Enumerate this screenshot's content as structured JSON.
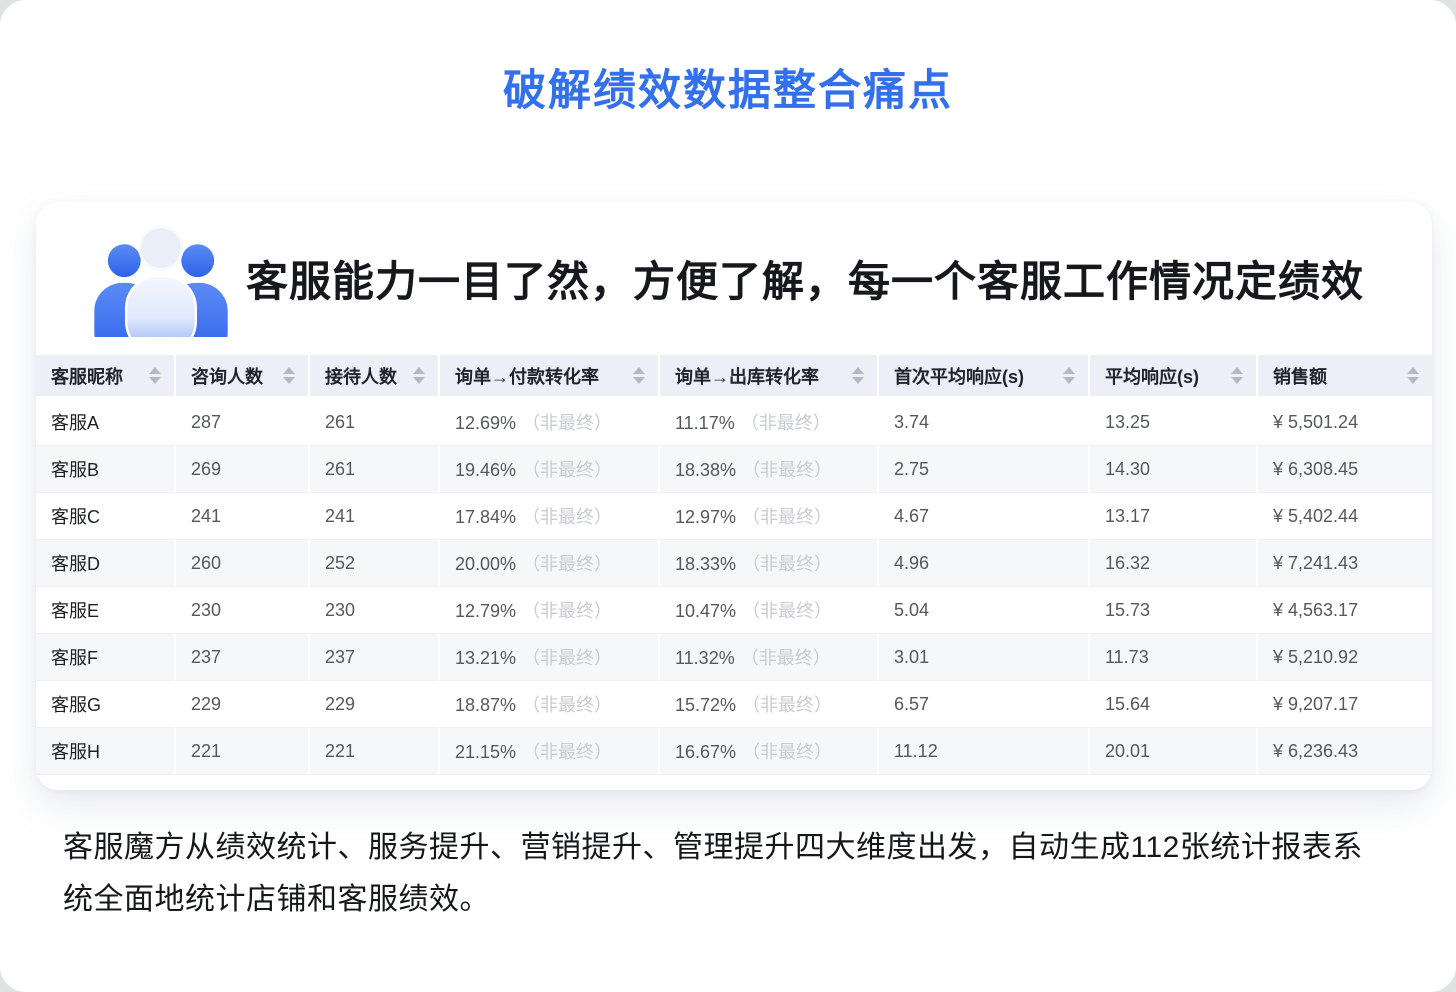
{
  "page": {
    "title": "破解绩效数据整合痛点"
  },
  "colors": {
    "accent_blue": "#3370eb",
    "header_bg": "#edeff6",
    "row_alt_bg": "#f6f7f9",
    "note_gray": "#c9ccd3",
    "sort_icon_gray": "#b3b8c2"
  },
  "card": {
    "icon": "team-people-icon",
    "heading": "客服能力一目了然，方便了解，每一个客服工作情况定绩效"
  },
  "table": {
    "rate_note": "（非最终）",
    "columns": [
      {
        "key": "name",
        "label": "客服昵称"
      },
      {
        "key": "consult",
        "label": "咨询人数"
      },
      {
        "key": "reception",
        "label": "接待人数"
      },
      {
        "key": "pay_rate",
        "label": "询单→付款转化率",
        "has_note": true
      },
      {
        "key": "ship_rate",
        "label": "询单→出库转化率",
        "has_note": true
      },
      {
        "key": "first_resp",
        "label": "首次平均响应(s)"
      },
      {
        "key": "avg_resp",
        "label": "平均响应(s)"
      },
      {
        "key": "sales",
        "label": "销售额"
      }
    ],
    "rows": [
      {
        "name": "客服A",
        "consult": "287",
        "reception": "261",
        "pay_rate": "12.69%",
        "ship_rate": "11.17%",
        "first_resp": "3.74",
        "avg_resp": "13.25",
        "sales": "¥ 5,501.24"
      },
      {
        "name": "客服B",
        "consult": "269",
        "reception": "261",
        "pay_rate": "19.46%",
        "ship_rate": "18.38%",
        "first_resp": "2.75",
        "avg_resp": "14.30",
        "sales": "¥ 6,308.45"
      },
      {
        "name": "客服C",
        "consult": "241",
        "reception": "241",
        "pay_rate": "17.84%",
        "ship_rate": "12.97%",
        "first_resp": "4.67",
        "avg_resp": "13.17",
        "sales": "¥ 5,402.44"
      },
      {
        "name": "客服D",
        "consult": "260",
        "reception": "252",
        "pay_rate": "20.00%",
        "ship_rate": "18.33%",
        "first_resp": "4.96",
        "avg_resp": "16.32",
        "sales": "¥ 7,241.43"
      },
      {
        "name": "客服E",
        "consult": "230",
        "reception": "230",
        "pay_rate": "12.79%",
        "ship_rate": "10.47%",
        "first_resp": "5.04",
        "avg_resp": "15.73",
        "sales": "¥ 4,563.17"
      },
      {
        "name": "客服F",
        "consult": "237",
        "reception": "237",
        "pay_rate": "13.21%",
        "ship_rate": "11.32%",
        "first_resp": "3.01",
        "avg_resp": "11.73",
        "sales": "¥ 5,210.92"
      },
      {
        "name": "客服G",
        "consult": "229",
        "reception": "229",
        "pay_rate": "18.87%",
        "ship_rate": "15.72%",
        "first_resp": "6.57",
        "avg_resp": "15.64",
        "sales": "¥ 9,207.17"
      },
      {
        "name": "客服H",
        "consult": "221",
        "reception": "221",
        "pay_rate": "21.15%",
        "ship_rate": "16.67%",
        "first_resp": "11.12",
        "avg_resp": "20.01",
        "sales": "¥ 6,236.43"
      }
    ]
  },
  "description": {
    "lines": [
      "客服魔方从绩效统计、服务提升、营销提升、管理提升四大维度出发，自动生成112张统计报表系",
      "统全面地统计店铺和客服绩效。"
    ]
  }
}
